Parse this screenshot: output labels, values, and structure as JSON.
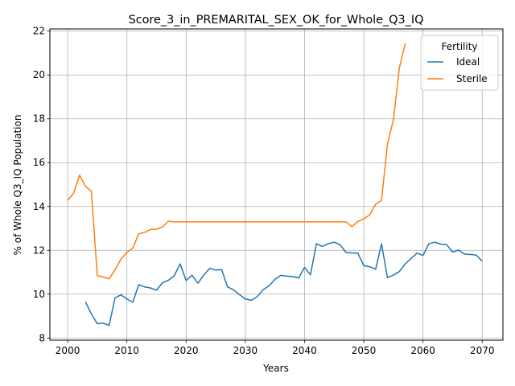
{
  "chart_data": {
    "type": "line",
    "title": "Score_3_in_PREMARITAL_SEX_OK_for_Whole_Q3_IQ",
    "xlabel": "Years",
    "ylabel": "% of Whole Q3_IQ Population",
    "xlim": [
      1997,
      2073.5
    ],
    "ylim": [
      7.9,
      22.1
    ],
    "xticks": [
      2000,
      2010,
      2020,
      2030,
      2040,
      2050,
      2060,
      2070
    ],
    "yticks": [
      8,
      10,
      12,
      14,
      16,
      18,
      20,
      22
    ],
    "grid": true,
    "legend": {
      "title": "Fertility",
      "position": "top-right"
    },
    "colors": {
      "Ideal": "#1f77b4",
      "Sterile": "#ff7f0e"
    },
    "series": [
      {
        "name": "Ideal",
        "x": [
          2003,
          2004,
          2005,
          2006,
          2007,
          2008,
          2009,
          2010,
          2011,
          2012,
          2013,
          2014,
          2015,
          2016,
          2017,
          2018,
          2019,
          2020,
          2021,
          2022,
          2023,
          2024,
          2025,
          2026,
          2027,
          2028,
          2029,
          2030,
          2031,
          2032,
          2033,
          2034,
          2035,
          2036,
          2037,
          2038,
          2039,
          2040,
          2041,
          2042,
          2043,
          2044,
          2045,
          2046,
          2047,
          2048,
          2049,
          2050,
          2051,
          2052,
          2053,
          2054,
          2055,
          2056,
          2057,
          2058,
          2059,
          2060,
          2061,
          2062,
          2063,
          2064,
          2065,
          2066,
          2067,
          2068,
          2069,
          2070
        ],
        "values": [
          9.65,
          9.1,
          8.65,
          8.68,
          8.57,
          9.83,
          9.97,
          9.78,
          9.63,
          10.43,
          10.33,
          10.28,
          10.18,
          10.52,
          10.63,
          10.84,
          11.38,
          10.62,
          10.86,
          10.5,
          10.88,
          11.18,
          11.1,
          11.12,
          10.33,
          10.2,
          9.98,
          9.78,
          9.72,
          9.88,
          10.2,
          10.38,
          10.67,
          10.86,
          10.82,
          10.8,
          10.74,
          11.22,
          10.88,
          12.3,
          12.18,
          12.3,
          12.37,
          12.25,
          11.9,
          11.88,
          11.87,
          11.3,
          11.25,
          11.13,
          12.3,
          10.75,
          10.87,
          11.03,
          11.38,
          11.63,
          11.87,
          11.77,
          12.3,
          12.37,
          12.28,
          12.26,
          11.92,
          12.01,
          11.83,
          11.81,
          11.78,
          11.5
        ]
      },
      {
        "name": "Sterile",
        "x": [
          2000,
          2001,
          2002,
          2003,
          2004,
          2005,
          2006,
          2007,
          2008,
          2009,
          2010,
          2011,
          2012,
          2013,
          2014,
          2015,
          2016,
          2017,
          2018,
          2019,
          2020,
          2021,
          2022,
          2023,
          2024,
          2025,
          2026,
          2027,
          2028,
          2029,
          2030,
          2031,
          2032,
          2033,
          2034,
          2035,
          2036,
          2037,
          2038,
          2039,
          2040,
          2041,
          2042,
          2043,
          2044,
          2045,
          2046,
          2047,
          2048,
          2049,
          2050,
          2051,
          2052,
          2053,
          2054,
          2055,
          2056,
          2057
        ],
        "values": [
          14.28,
          14.6,
          15.43,
          14.92,
          14.7,
          10.85,
          10.78,
          10.7,
          11.1,
          11.6,
          11.9,
          12.1,
          12.75,
          12.82,
          12.95,
          12.96,
          13.06,
          13.33,
          13.3,
          13.3,
          13.3,
          13.3,
          13.3,
          13.3,
          13.3,
          13.3,
          13.3,
          13.3,
          13.3,
          13.3,
          13.3,
          13.3,
          13.3,
          13.3,
          13.3,
          13.3,
          13.3,
          13.3,
          13.3,
          13.3,
          13.3,
          13.3,
          13.3,
          13.3,
          13.3,
          13.3,
          13.3,
          13.3,
          13.08,
          13.32,
          13.43,
          13.62,
          14.1,
          14.28,
          16.85,
          17.95,
          20.3,
          21.45
        ]
      }
    ]
  }
}
